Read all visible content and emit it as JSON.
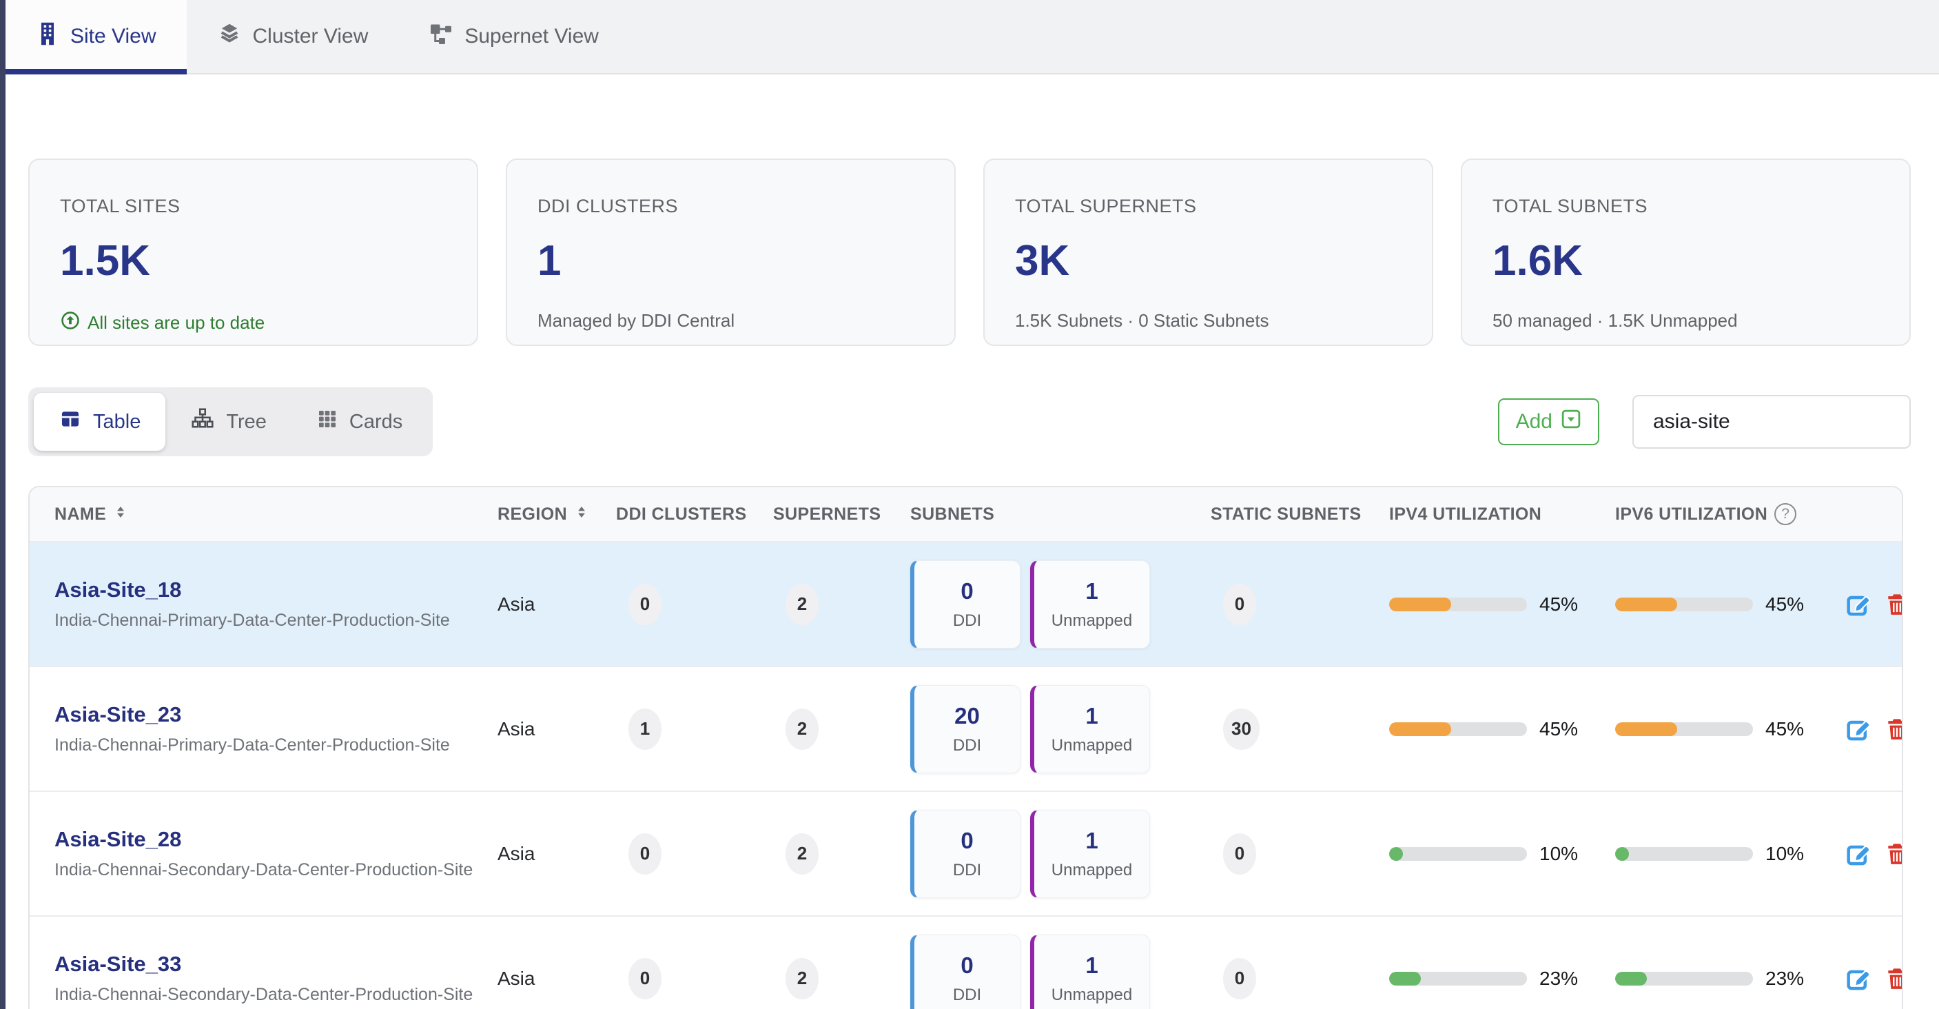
{
  "tabs": [
    {
      "label": "Site View",
      "active": true
    },
    {
      "label": "Cluster View",
      "active": false
    },
    {
      "label": "Supernet View",
      "active": false
    }
  ],
  "stats": [
    {
      "title": "TOTAL SITES",
      "value": "1.5K",
      "subtitle": "All sites are up to date"
    },
    {
      "title": "DDI CLUSTERS",
      "value": "1",
      "subtitle": "Managed by DDI Central"
    },
    {
      "title": "TOTAL SUPERNETS",
      "value": "3K",
      "subtitle": "1.5K Subnets · 0 Static Subnets"
    },
    {
      "title": "TOTAL SUBNETS",
      "value": "1.6K",
      "subtitle": "50 managed · 1.5K Unmapped"
    }
  ],
  "view_toggle": [
    {
      "label": "Table",
      "active": true
    },
    {
      "label": "Tree",
      "active": false
    },
    {
      "label": "Cards",
      "active": false
    }
  ],
  "toolbar": {
    "add_label": "Add",
    "search_value": "asia-site"
  },
  "table": {
    "columns": [
      "NAME",
      "REGION",
      "DDI CLUSTERS",
      "SUPERNETS",
      "SUBNETS",
      "STATIC SUBNETS",
      "IPV4 UTILIZATION",
      "IPV6 UTILIZATION"
    ],
    "subnet_card_labels": {
      "ddi": "DDI",
      "unmapped": "Unmapped"
    },
    "rows": [
      {
        "name": "Asia-Site_18",
        "description": "India-Chennai-Primary-Data-Center-Production-Site",
        "region": "Asia",
        "ddi_clusters": "0",
        "supernets": "2",
        "subnets_ddi": "0",
        "subnets_unmapped": "1",
        "static_subnets": "0",
        "ipv4_utilization": "45%",
        "ipv6_utilization": "45%",
        "utilization_color": "#f2a444",
        "highlighted": true
      },
      {
        "name": "Asia-Site_23",
        "description": "India-Chennai-Primary-Data-Center-Production-Site",
        "region": "Asia",
        "ddi_clusters": "1",
        "supernets": "2",
        "subnets_ddi": "20",
        "subnets_unmapped": "1",
        "static_subnets": "30",
        "ipv4_utilization": "45%",
        "ipv6_utilization": "45%",
        "utilization_color": "#f2a444",
        "highlighted": false
      },
      {
        "name": "Asia-Site_28",
        "description": "India-Chennai-Secondary-Data-Center-Production-Site",
        "region": "Asia",
        "ddi_clusters": "0",
        "supernets": "2",
        "subnets_ddi": "0",
        "subnets_unmapped": "1",
        "static_subnets": "0",
        "ipv4_utilization": "10%",
        "ipv6_utilization": "10%",
        "utilization_color": "#67b868",
        "highlighted": false
      },
      {
        "name": "Asia-Site_33",
        "description": "India-Chennai-Secondary-Data-Center-Production-Site",
        "region": "Asia",
        "ddi_clusters": "0",
        "supernets": "2",
        "subnets_ddi": "0",
        "subnets_unmapped": "1",
        "static_subnets": "0",
        "ipv4_utilization": "23%",
        "ipv6_utilization": "23%",
        "utilization_color": "#67b868",
        "highlighted": false
      }
    ]
  },
  "colors": {
    "accent_navy": "#283589",
    "success_green": "#2e7d32",
    "add_green": "#4caf50",
    "bar_orange": "#f2a444",
    "bar_green": "#67b868",
    "highlight_row": "#e2f0fb",
    "edit_blue": "#3b9be9",
    "delete_red": "#da362a",
    "subnet_ddi_blue": "#4f96d8",
    "subnet_unmapped_purple": "#9127a8"
  }
}
